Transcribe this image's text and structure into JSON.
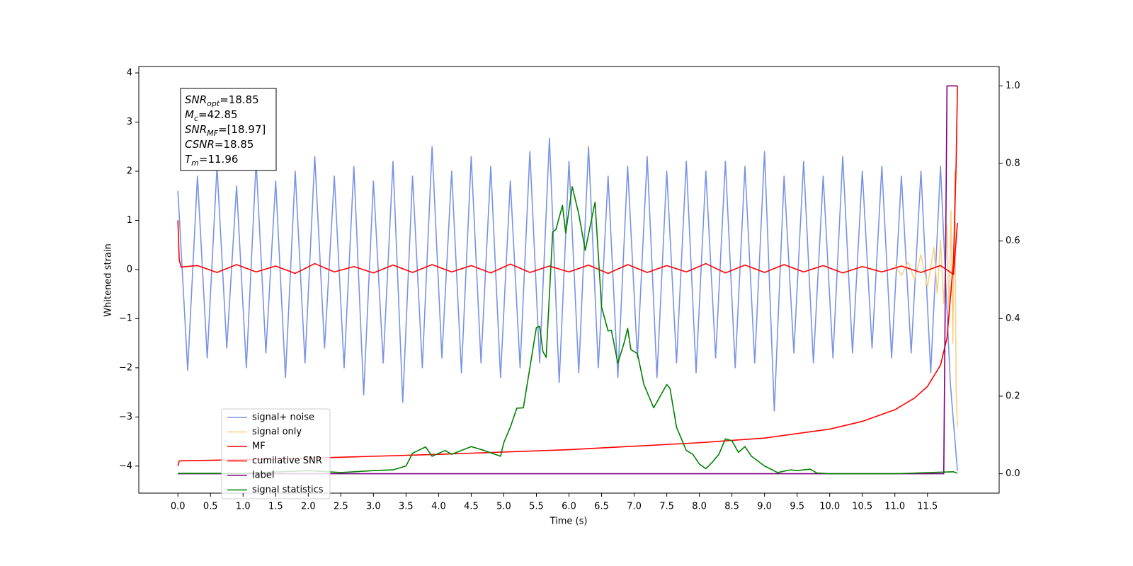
{
  "chart_data": {
    "type": "line",
    "xlabel": "Time (s)",
    "ylabel": "Whitened strain",
    "xlim": [
      -0.6,
      12.6
    ],
    "ylim": [
      -4.55,
      4.13
    ],
    "y2lim": [
      -0.05,
      1.05
    ],
    "grid": false,
    "legend_loc": "lower left",
    "xticks": [
      {
        "value": 0,
        "label": "0.0"
      },
      {
        "value": 0.5,
        "label": "0.5"
      },
      {
        "value": 1,
        "label": "1.0"
      },
      {
        "value": 1.5,
        "label": "1.5"
      },
      {
        "value": 2,
        "label": "2.0"
      },
      {
        "value": 2.5,
        "label": "2.5"
      },
      {
        "value": 3,
        "label": "3.0"
      },
      {
        "value": 3.5,
        "label": "3.5"
      },
      {
        "value": 4,
        "label": "4.0"
      },
      {
        "value": 4.5,
        "label": "4.5"
      },
      {
        "value": 5,
        "label": "5.0"
      },
      {
        "value": 5.5,
        "label": "5.5"
      },
      {
        "value": 6,
        "label": "6.0"
      },
      {
        "value": 6.5,
        "label": "6.5"
      },
      {
        "value": 7,
        "label": "7.0"
      },
      {
        "value": 7.5,
        "label": "7.5"
      },
      {
        "value": 8,
        "label": "8.0"
      },
      {
        "value": 8.5,
        "label": "8.5"
      },
      {
        "value": 9,
        "label": "9.0"
      },
      {
        "value": 9.5,
        "label": "9.5"
      },
      {
        "value": 10,
        "label": "10.0"
      },
      {
        "value": 10.5,
        "label": "10.5"
      },
      {
        "value": 11,
        "label": "11.0"
      },
      {
        "value": 11.5,
        "label": "11.5"
      }
    ],
    "yticks": [
      {
        "value": -4,
        "label": "−4"
      },
      {
        "value": -3,
        "label": "−3"
      },
      {
        "value": -2,
        "label": "−2"
      },
      {
        "value": -1,
        "label": "−1"
      },
      0,
      1,
      2,
      3,
      4
    ],
    "y2ticks": [
      {
        "value": 0,
        "label": "0.0"
      },
      0.2,
      0.4,
      0.6,
      0.8,
      {
        "value": 1,
        "label": "1.0"
      }
    ],
    "annotations": [
      {
        "symbol": "SNR",
        "subscript": "opt",
        "text": "=18.85"
      },
      {
        "symbol": "M",
        "subscript": "c",
        "text": "=42.85"
      },
      {
        "symbol": "SNR",
        "subscript": "MF",
        "text": "=[18.97]"
      },
      {
        "symbol": "CSNR",
        "subscript": null,
        "text": "=18.85"
      },
      {
        "symbol": "T",
        "subscript": "m",
        "text": "=11.96"
      }
    ],
    "series": [
      {
        "name": "signal+ noise",
        "color": "#7893e6",
        "x": [
          0,
          0.15,
          0.3,
          0.45,
          0.6,
          0.75,
          0.9,
          1.05,
          1.2,
          1.35,
          1.5,
          1.65,
          1.8,
          1.95,
          2.1,
          2.25,
          2.4,
          2.55,
          2.7,
          2.85,
          3,
          3.15,
          3.3,
          3.45,
          3.6,
          3.75,
          3.9,
          4.05,
          4.2,
          4.35,
          4.5,
          4.65,
          4.8,
          4.95,
          5.1,
          5.25,
          5.4,
          5.55,
          5.7,
          5.85,
          6,
          6.15,
          6.3,
          6.45,
          6.6,
          6.75,
          6.9,
          7.05,
          7.2,
          7.35,
          7.5,
          7.65,
          7.8,
          7.95,
          8.1,
          8.25,
          8.4,
          8.55,
          8.7,
          8.85,
          9,
          9.15,
          9.3,
          9.45,
          9.6,
          9.75,
          9.9,
          10.05,
          10.2,
          10.35,
          10.5,
          10.65,
          10.8,
          10.95,
          11.1,
          11.25,
          11.4,
          11.55,
          11.7,
          11.85,
          11.96
        ],
        "values": [
          1.6,
          -2.05,
          1.9,
          -1.8,
          2.1,
          -1.6,
          1.7,
          -2.0,
          2.2,
          -1.7,
          1.8,
          -2.2,
          2.0,
          -1.9,
          2.3,
          -1.6,
          1.9,
          -2.0,
          2.1,
          -2.55,
          1.8,
          -1.9,
          2.2,
          -2.7,
          1.9,
          -2.0,
          2.5,
          -1.8,
          2.0,
          -2.1,
          2.3,
          -1.9,
          2.1,
          -2.2,
          1.8,
          -2.0,
          2.4,
          -1.9,
          2.67,
          -2.3,
          2.2,
          -2.1,
          2.5,
          -2.0,
          1.9,
          -2.2,
          2.1,
          -1.8,
          2.3,
          -2.2,
          2.0,
          -1.9,
          2.2,
          -2.1,
          2.0,
          -1.8,
          2.2,
          -2.0,
          2.1,
          -1.9,
          2.4,
          -2.88,
          1.9,
          -1.7,
          2.2,
          -1.9,
          1.9,
          -1.8,
          2.3,
          -1.7,
          2.0,
          -1.6,
          2.1,
          -1.8,
          1.9,
          -1.7,
          2.0,
          -2.1,
          2.1,
          -2.3,
          -4.1
        ]
      },
      {
        "name": "signal only",
        "color": "#f8d18a",
        "x": [
          11.0,
          11.1,
          11.2,
          11.3,
          11.4,
          11.5,
          11.6,
          11.65,
          11.7,
          11.75,
          11.8,
          11.83,
          11.86,
          11.89,
          11.92,
          11.94,
          11.96
        ],
        "values": [
          0.1,
          -0.12,
          0.15,
          -0.2,
          0.3,
          -0.35,
          0.45,
          -0.5,
          0.6,
          -0.7,
          0.9,
          -1.0,
          1.2,
          -1.5,
          2.0,
          -2.5,
          -3.2
        ]
      },
      {
        "name": "MF",
        "color": "#ff0000",
        "x": [
          0,
          0.02,
          0.05,
          0.3,
          0.6,
          0.9,
          1.2,
          1.5,
          1.8,
          2.1,
          2.4,
          2.7,
          3,
          3.3,
          3.6,
          3.9,
          4.2,
          4.5,
          4.8,
          5.1,
          5.4,
          5.7,
          6,
          6.3,
          6.6,
          6.9,
          7.2,
          7.5,
          7.8,
          8.1,
          8.4,
          8.7,
          9,
          9.3,
          9.6,
          9.9,
          10.2,
          10.5,
          10.8,
          11.1,
          11.4,
          11.7,
          11.9,
          11.96
        ],
        "values": [
          1.0,
          0.2,
          0.05,
          0.08,
          -0.06,
          0.1,
          -0.05,
          0.07,
          -0.08,
          0.12,
          -0.05,
          0.06,
          -0.07,
          0.09,
          -0.06,
          0.1,
          -0.05,
          0.08,
          -0.07,
          0.11,
          -0.06,
          0.07,
          -0.05,
          0.09,
          -0.08,
          0.1,
          -0.06,
          0.08,
          -0.05,
          0.12,
          -0.07,
          0.09,
          -0.06,
          0.1,
          -0.05,
          0.08,
          -0.07,
          0.06,
          -0.05,
          0.07,
          -0.06,
          0.08,
          -0.1,
          0.95
        ]
      },
      {
        "name": "cumilative SNR",
        "color": "#ff0000",
        "axis": "y2",
        "x": [
          0,
          0.02,
          2,
          4,
          6,
          8,
          9,
          10,
          10.5,
          11,
          11.3,
          11.5,
          11.7,
          11.8,
          11.9,
          11.94,
          11.96
        ],
        "values": [
          0.02,
          0.033,
          0.04,
          0.05,
          0.062,
          0.08,
          0.092,
          0.115,
          0.135,
          0.165,
          0.195,
          0.225,
          0.28,
          0.35,
          0.55,
          0.8,
          1.0
        ]
      },
      {
        "name": "label",
        "color": "#800080",
        "axis": "y2",
        "x": [
          0,
          11.75,
          11.8,
          11.96
        ],
        "values": [
          0,
          0,
          1,
          1
        ]
      },
      {
        "name": "signal statistics",
        "color": "#008000",
        "axis": "y2",
        "x": [
          0,
          1,
          2,
          2.5,
          3,
          3.3,
          3.5,
          3.6,
          3.8,
          3.9,
          4.1,
          4.2,
          4.5,
          4.7,
          4.95,
          5.0,
          5.1,
          5.2,
          5.3,
          5.5,
          5.55,
          5.6,
          5.65,
          5.75,
          5.8,
          5.9,
          5.95,
          6.05,
          6.15,
          6.25,
          6.4,
          6.5,
          6.6,
          6.65,
          6.75,
          6.85,
          6.9,
          6.95,
          7.05,
          7.15,
          7.3,
          7.5,
          7.55,
          7.65,
          7.8,
          7.9,
          8.0,
          8.1,
          8.2,
          8.3,
          8.4,
          8.5,
          8.6,
          8.7,
          8.8,
          9.0,
          9.2,
          9.4,
          9.5,
          9.7,
          9.8,
          10,
          11,
          11.9,
          11.96
        ],
        "values": [
          0.001,
          0.001,
          0.008,
          0.003,
          0.008,
          0.01,
          0.02,
          0.053,
          0.069,
          0.045,
          0.06,
          0.05,
          0.07,
          0.06,
          0.045,
          0.08,
          0.12,
          0.169,
          0.17,
          0.377,
          0.38,
          0.315,
          0.3,
          0.623,
          0.63,
          0.692,
          0.62,
          0.74,
          0.67,
          0.576,
          0.7,
          0.43,
          0.368,
          0.37,
          0.285,
          0.34,
          0.375,
          0.32,
          0.31,
          0.23,
          0.17,
          0.23,
          0.22,
          0.12,
          0.06,
          0.05,
          0.025,
          0.013,
          0.03,
          0.05,
          0.09,
          0.085,
          0.055,
          0.07,
          0.045,
          0.02,
          0.003,
          0.01,
          0.008,
          0.012,
          0.002,
          0,
          0,
          0.005,
          0.001
        ]
      }
    ]
  }
}
